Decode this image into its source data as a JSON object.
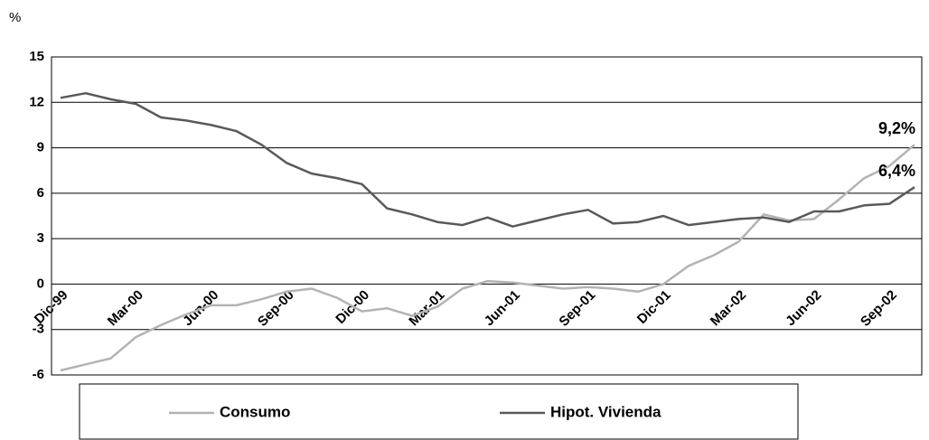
{
  "chart_data": {
    "type": "line",
    "y_axis_label": "%",
    "categories": [
      "Dic-99",
      null,
      null,
      "Mar-00",
      null,
      null,
      "Jun-00",
      null,
      null,
      "Sep-00",
      null,
      null,
      "Dic-00",
      null,
      null,
      "Mar-01",
      null,
      null,
      "Jun-01",
      null,
      null,
      "Sep-01",
      null,
      null,
      "Dic-01",
      null,
      null,
      "Mar-02",
      null,
      null,
      "Jun-02",
      null,
      null,
      "Sep-02",
      null
    ],
    "series": [
      {
        "name": "Consumo",
        "color": "#b3b3b3",
        "values": [
          -5.7,
          -5.3,
          -4.9,
          -3.5,
          -2.7,
          -2.0,
          -1.4,
          -1.4,
          -1.0,
          -0.5,
          -0.3,
          -0.9,
          -1.8,
          -1.6,
          -2.1,
          -1.5,
          -0.3,
          0.2,
          0.1,
          -0.1,
          -0.3,
          -0.2,
          -0.3,
          -0.5,
          0.0,
          1.2,
          1.9,
          2.8,
          4.6,
          4.2,
          4.3,
          5.6,
          7.0,
          7.8,
          9.2
        ]
      },
      {
        "name": "Hipot. Vivienda",
        "color": "#595959",
        "values": [
          12.3,
          12.6,
          12.2,
          11.9,
          11.0,
          10.8,
          10.5,
          10.1,
          9.2,
          8.0,
          7.3,
          7.0,
          6.6,
          5.0,
          4.6,
          4.1,
          3.9,
          4.4,
          3.8,
          4.2,
          4.6,
          4.9,
          4.0,
          4.1,
          4.5,
          3.9,
          4.1,
          4.3,
          4.4,
          4.1,
          4.8,
          4.8,
          5.2,
          5.3,
          6.4
        ]
      }
    ],
    "annotations": [
      "9,2%",
      "6,4%"
    ],
    "ylim": [
      -6,
      15
    ],
    "yticks": [
      -6,
      -3,
      0,
      3,
      6,
      9,
      12,
      15
    ],
    "grid": true
  }
}
